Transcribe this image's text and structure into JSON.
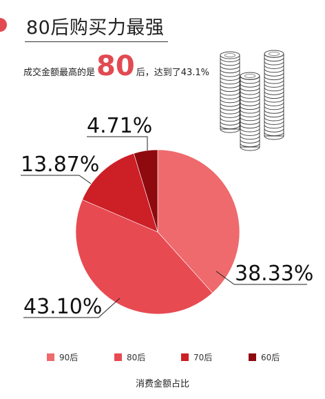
{
  "header": {
    "title": "80后购买力最强",
    "headline_pre": "成交金额最高的是",
    "headline_big": "80",
    "headline_post": "后，达到了43.1%"
  },
  "chart_data": {
    "type": "pie",
    "categories": [
      "90后",
      "80后",
      "70后",
      "60后"
    ],
    "values": [
      38.33,
      43.1,
      13.87,
      4.71
    ],
    "labels": [
      "38.33%",
      "43.10%",
      "13.87%",
      "4.71%"
    ],
    "colors": [
      "#ee6a6c",
      "#e84a52",
      "#cc1f26",
      "#8e0a0f"
    ],
    "xlabel": "消费金额占比",
    "legend_position": "bottom"
  },
  "decoration": {
    "icon": "coin-stacks-icon"
  }
}
